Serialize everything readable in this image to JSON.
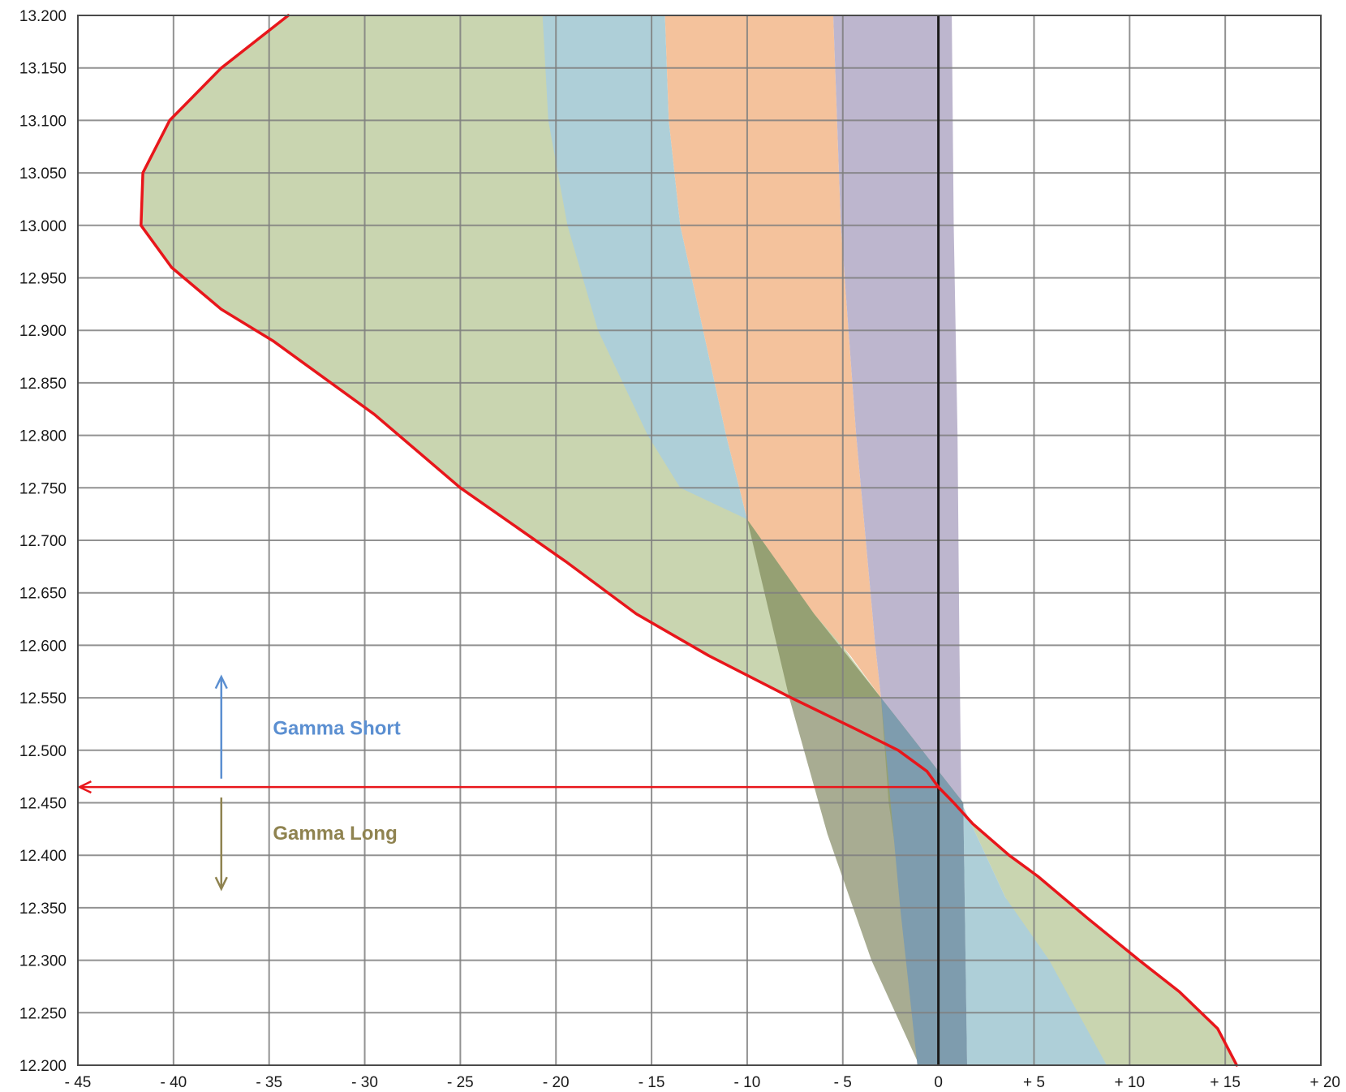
{
  "chart_data": {
    "type": "area",
    "xlim": [
      -45,
      20
    ],
    "ylim": [
      12.2,
      13.2
    ],
    "grid": true,
    "x_ticks": [
      {
        "value": -45,
        "label": "- 45"
      },
      {
        "value": -40,
        "label": "- 40"
      },
      {
        "value": -35,
        "label": "- 35"
      },
      {
        "value": -30,
        "label": "- 30"
      },
      {
        "value": -25,
        "label": "- 25"
      },
      {
        "value": -20,
        "label": "- 20"
      },
      {
        "value": -15,
        "label": "- 15"
      },
      {
        "value": -10,
        "label": "- 10"
      },
      {
        "value": -5,
        "label": "- 5"
      },
      {
        "value": 0,
        "label": "0"
      },
      {
        "value": 5,
        "label": "+ 5"
      },
      {
        "value": 10,
        "label": "+ 10"
      },
      {
        "value": 15,
        "label": "+ 15"
      },
      {
        "value": 20,
        "label": "+ 20"
      }
    ],
    "y_ticks": [
      {
        "value": 13.2,
        "label": "13.200"
      },
      {
        "value": 13.15,
        "label": "13.150"
      },
      {
        "value": 13.1,
        "label": "13.100"
      },
      {
        "value": 13.05,
        "label": "13.050"
      },
      {
        "value": 13.0,
        "label": "13.000"
      },
      {
        "value": 12.95,
        "label": "12.950"
      },
      {
        "value": 12.9,
        "label": "12.900"
      },
      {
        "value": 12.85,
        "label": "12.850"
      },
      {
        "value": 12.8,
        "label": "12.800"
      },
      {
        "value": 12.75,
        "label": "12.750"
      },
      {
        "value": 12.7,
        "label": "12.700"
      },
      {
        "value": 12.65,
        "label": "12.650"
      },
      {
        "value": 12.6,
        "label": "12.600"
      },
      {
        "value": 12.55,
        "label": "12.550"
      },
      {
        "value": 12.5,
        "label": "12.500"
      },
      {
        "value": 12.45,
        "label": "12.450"
      },
      {
        "value": 12.4,
        "label": "12.400"
      },
      {
        "value": 12.35,
        "label": "12.350"
      },
      {
        "value": 12.3,
        "label": "12.300"
      },
      {
        "value": 12.25,
        "label": "12.250"
      },
      {
        "value": 12.2,
        "label": "12.200"
      }
    ],
    "areas": [
      {
        "color": "#c9d5b0",
        "points": [
          [
            -34,
            13.2
          ],
          [
            -37.5,
            13.15
          ],
          [
            -40.2,
            13.1
          ],
          [
            -41.6,
            13.05
          ],
          [
            -41.7,
            13.0
          ],
          [
            -40.1,
            12.96
          ],
          [
            -37.5,
            12.92
          ],
          [
            -34.8,
            12.89
          ],
          [
            -29.5,
            12.82
          ],
          [
            -25,
            12.75
          ],
          [
            -19.5,
            12.68
          ],
          [
            -15.8,
            12.63
          ],
          [
            -12,
            12.59
          ],
          [
            -7.7,
            12.55
          ],
          [
            -4.3,
            12.52
          ],
          [
            -2.1,
            12.5
          ],
          [
            -0.6,
            12.48
          ],
          [
            0,
            12.465
          ],
          [
            0.8,
            12.45
          ],
          [
            1.8,
            12.43
          ],
          [
            3.7,
            12.4
          ],
          [
            5.2,
            12.38
          ],
          [
            7.8,
            12.34
          ],
          [
            10.5,
            12.3
          ],
          [
            12.6,
            12.27
          ],
          [
            14.6,
            12.235
          ],
          [
            15.6,
            12.2
          ],
          [
            8.8,
            12.2
          ],
          [
            3.5,
            12.36
          ],
          [
            1.2,
            12.45
          ],
          [
            -3,
            12.55
          ],
          [
            -10,
            12.72
          ],
          [
            -14.5,
            12.83
          ],
          [
            -18,
            12.95
          ],
          [
            -20.7,
            13.2
          ]
        ]
      },
      {
        "color": "#aecfd8",
        "points": [
          [
            -20.7,
            13.2
          ],
          [
            -20.4,
            13.1
          ],
          [
            -19.4,
            13.0
          ],
          [
            -17.8,
            12.9
          ],
          [
            -15.2,
            12.8
          ],
          [
            -13.5,
            12.75
          ],
          [
            -10,
            12.72
          ],
          [
            -3,
            12.55
          ],
          [
            1.2,
            12.45
          ],
          [
            3.5,
            12.36
          ],
          [
            5.8,
            12.3
          ],
          [
            8.8,
            12.2
          ],
          [
            1.5,
            12.2
          ],
          [
            1.3,
            12.45
          ],
          [
            -3,
            12.55
          ],
          [
            -10,
            12.72
          ],
          [
            -11.1,
            12.8
          ],
          [
            -12.3,
            12.9
          ],
          [
            -13.5,
            13.0
          ],
          [
            -14.1,
            13.1
          ],
          [
            -14.3,
            13.2
          ]
        ]
      },
      {
        "color": "#f4c29c",
        "points": [
          [
            -14.3,
            13.2
          ],
          [
            -14.1,
            13.1
          ],
          [
            -13.5,
            13.0
          ],
          [
            -12.3,
            12.9
          ],
          [
            -11.1,
            12.8
          ],
          [
            -10,
            12.72
          ],
          [
            -6.5,
            12.63
          ],
          [
            -4.6,
            12.59
          ],
          [
            -3,
            12.55
          ],
          [
            -3.3,
            12.6
          ],
          [
            -3.8,
            12.7
          ],
          [
            -4.3,
            12.8
          ],
          [
            -4.7,
            12.9
          ],
          [
            -5.1,
            13.0
          ],
          [
            -5.3,
            13.1
          ],
          [
            -5.5,
            13.2
          ]
        ]
      },
      {
        "color": "#bdb6ce",
        "points": [
          [
            -5.5,
            13.2
          ],
          [
            -5.3,
            13.1
          ],
          [
            -5.1,
            13.0
          ],
          [
            -4.7,
            12.9
          ],
          [
            -4.3,
            12.8
          ],
          [
            -3.8,
            12.7
          ],
          [
            -3.3,
            12.6
          ],
          [
            -3,
            12.55
          ],
          [
            1.2,
            12.45
          ],
          [
            1.1,
            12.6
          ],
          [
            1,
            12.8
          ],
          [
            0.8,
            13.0
          ],
          [
            0.7,
            13.2
          ]
        ]
      },
      {
        "color": "#95a073",
        "points": [
          [
            -10,
            12.72
          ],
          [
            -7.8,
            12.55
          ],
          [
            -5.2,
            12.4
          ],
          [
            -2.6,
            12.3
          ],
          [
            -1,
            12.2
          ],
          [
            -1,
            12.2
          ],
          [
            -0.5,
            12.35
          ],
          [
            1.3,
            12.45
          ],
          [
            -3,
            12.55
          ],
          [
            -6.5,
            12.63
          ]
        ]
      },
      {
        "color": "#a8ac92",
        "points": [
          [
            -7.8,
            12.55
          ],
          [
            -3,
            12.55
          ],
          [
            -2.6,
            12.45
          ],
          [
            -1.8,
            12.35
          ],
          [
            -1,
            12.2
          ],
          [
            -1,
            12.2
          ],
          [
            -3.5,
            12.3
          ],
          [
            -5.8,
            12.42
          ]
        ]
      },
      {
        "color": "#7e9cae",
        "points": [
          [
            -3,
            12.55
          ],
          [
            -2.5,
            12.45
          ],
          [
            -2,
            12.35
          ],
          [
            -1.1,
            12.2
          ],
          [
            1.5,
            12.2
          ],
          [
            1.3,
            12.45
          ]
        ]
      }
    ],
    "series": [
      {
        "color": "#e8161b",
        "points": [
          [
            -34,
            13.2
          ],
          [
            -37.5,
            13.15
          ],
          [
            -40.2,
            13.1
          ],
          [
            -41.6,
            13.05
          ],
          [
            -41.7,
            13.0
          ],
          [
            -40.1,
            12.96
          ],
          [
            -37.5,
            12.92
          ],
          [
            -34.8,
            12.89
          ],
          [
            -29.5,
            12.82
          ],
          [
            -25,
            12.75
          ],
          [
            -19.5,
            12.68
          ],
          [
            -15.8,
            12.63
          ],
          [
            -12,
            12.59
          ],
          [
            -7.7,
            12.55
          ],
          [
            -4.3,
            12.52
          ],
          [
            -2.1,
            12.5
          ],
          [
            -0.6,
            12.48
          ],
          [
            0,
            12.465
          ],
          [
            0.8,
            12.45
          ],
          [
            1.8,
            12.43
          ],
          [
            3.7,
            12.4
          ],
          [
            5.2,
            12.38
          ],
          [
            7.8,
            12.34
          ],
          [
            10.5,
            12.3
          ],
          [
            12.6,
            12.27
          ],
          [
            14.6,
            12.235
          ],
          [
            15.6,
            12.2
          ]
        ]
      }
    ],
    "annotations": [
      {
        "text": "Gamma Short",
        "color": "#5b8fd1",
        "x": -34.8,
        "y": 12.515
      },
      {
        "text": "Gamma Long",
        "color": "#8f8350",
        "x": -34.8,
        "y": 12.415
      }
    ],
    "arrows": [
      {
        "color": "#5b8fd1",
        "from": [
          -37.5,
          12.473
        ],
        "to": [
          -37.5,
          12.57
        ]
      },
      {
        "color": "#8f8350",
        "from": [
          -37.5,
          12.455
        ],
        "to": [
          -37.5,
          12.368
        ]
      },
      {
        "color": "#e8161b",
        "from": [
          0,
          12.465
        ],
        "to": [
          -45,
          12.465
        ]
      }
    ],
    "zero_line_x": 0
  }
}
